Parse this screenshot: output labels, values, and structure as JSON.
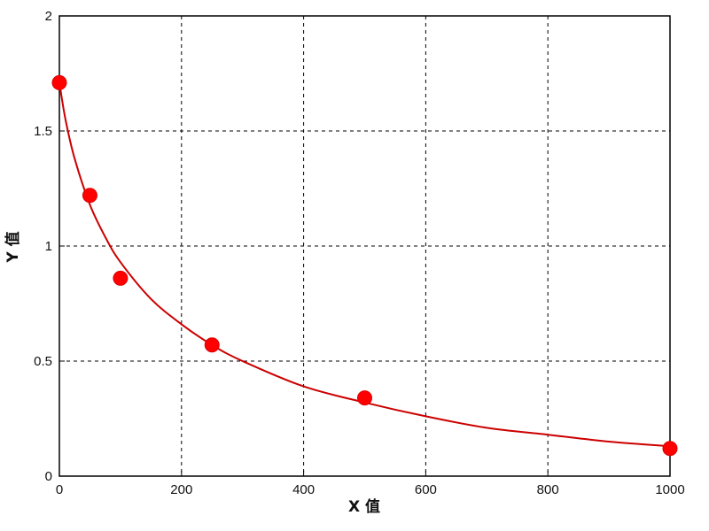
{
  "chart_data": {
    "type": "scatter",
    "title": "",
    "xlabel": "X 值",
    "ylabel": "Y 值",
    "xlim": [
      0,
      1000
    ],
    "ylim": [
      0,
      2
    ],
    "x_ticks": [
      0,
      200,
      400,
      600,
      800,
      1000
    ],
    "y_ticks": [
      0,
      0.5,
      1,
      1.5,
      2
    ],
    "x_tick_labels": [
      "0",
      "200",
      "400",
      "600",
      "800",
      "1000"
    ],
    "y_tick_labels": [
      "0",
      "0.5",
      "1",
      "1.5",
      "2"
    ],
    "grid": true,
    "series": [
      {
        "type": "scatter",
        "color": "#ff0000",
        "marker": "circle",
        "points": [
          {
            "x": 0,
            "y": 1.71
          },
          {
            "x": 50,
            "y": 1.22
          },
          {
            "x": 100,
            "y": 0.86
          },
          {
            "x": 250,
            "y": 0.57
          },
          {
            "x": 500,
            "y": 0.34
          },
          {
            "x": 1000,
            "y": 0.12
          }
        ]
      },
      {
        "type": "line",
        "color": "#cc0000",
        "smooth": true,
        "points": [
          {
            "x": 0,
            "y": 1.71
          },
          {
            "x": 10,
            "y": 1.55
          },
          {
            "x": 25,
            "y": 1.38
          },
          {
            "x": 50,
            "y": 1.18
          },
          {
            "x": 75,
            "y": 1.04
          },
          {
            "x": 100,
            "y": 0.93
          },
          {
            "x": 150,
            "y": 0.77
          },
          {
            "x": 200,
            "y": 0.66
          },
          {
            "x": 250,
            "y": 0.57
          },
          {
            "x": 300,
            "y": 0.5
          },
          {
            "x": 400,
            "y": 0.39
          },
          {
            "x": 500,
            "y": 0.32
          },
          {
            "x": 600,
            "y": 0.26
          },
          {
            "x": 700,
            "y": 0.21
          },
          {
            "x": 800,
            "y": 0.18
          },
          {
            "x": 900,
            "y": 0.15
          },
          {
            "x": 1000,
            "y": 0.13
          }
        ]
      }
    ]
  }
}
